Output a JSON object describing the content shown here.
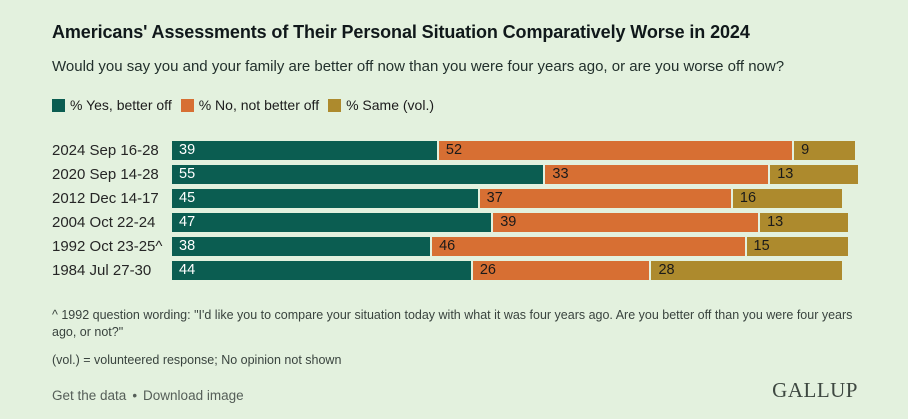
{
  "colors": {
    "background": "#e3f1de",
    "yes_teal": "#0b5d51",
    "no_orange": "#d76f33",
    "same_olive": "#ad8a2d"
  },
  "chart_data": {
    "type": "bar",
    "orientation": "horizontal-stacked",
    "title": "Americans' Assessments of Their Personal Situation Comparatively Worse in 2024",
    "subtitle": "Would you say you and your family are better off now than you were four years ago, or are you worse off now?",
    "categories": [
      "2024 Sep 16-28",
      "2020 Sep 14-28",
      "2012 Dec 14-17",
      "2004 Oct 22-24",
      "1992 Oct 23-25^",
      "1984 Jul 27-30"
    ],
    "series": [
      {
        "name": "% Yes, better off",
        "color": "#0b5d51",
        "label_color": "#ffffff",
        "values": [
          39,
          55,
          45,
          47,
          38,
          44
        ]
      },
      {
        "name": "% No, not better off",
        "color": "#d76f33",
        "label_color": "#1a1a1a",
        "values": [
          52,
          33,
          37,
          39,
          46,
          26
        ]
      },
      {
        "name": "% Same (vol.)",
        "color": "#ad8a2d",
        "label_color": "#1a1a1a",
        "values": [
          9,
          13,
          16,
          13,
          15,
          28
        ]
      }
    ],
    "xlim": [
      0,
      101
    ],
    "grid": false,
    "legend_position": "top",
    "value_labels": "inside-left"
  },
  "footnotes": {
    "note1": "^ 1992 question wording: \"I'd like you to compare your situation today with what it was four years ago. Are you better off than you were four years ago, or not?\"",
    "note2": "(vol.) = volunteered response; No opinion not shown"
  },
  "footer": {
    "links": [
      {
        "label": "Get the data"
      },
      {
        "label": "Download image"
      }
    ],
    "separator": "•",
    "logo": "GALLUP"
  }
}
